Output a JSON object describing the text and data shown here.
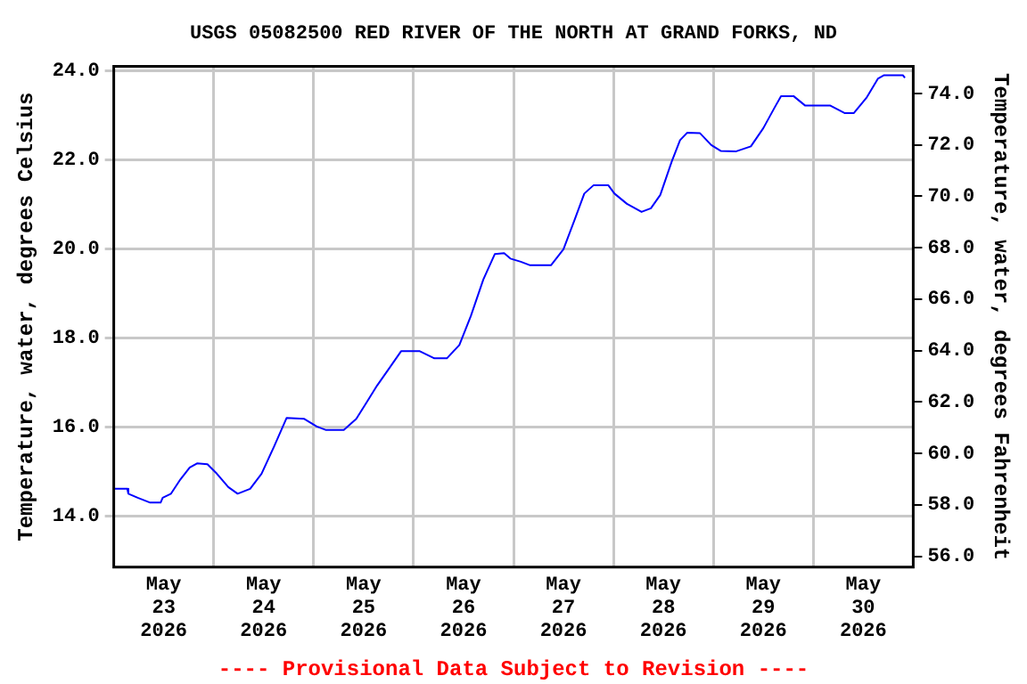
{
  "chart_data": {
    "type": "line",
    "title": "USGS 05082500 RED RIVER OF THE NORTH AT GRAND FORKS, ND",
    "ylabel": "Temperature, water, degrees Celsius",
    "y2label": "Temperature, water, degrees Fahrenheit",
    "annotations": [
      "---- Provisional Data Subject to Revision ----"
    ],
    "x": [
      "2026-05-23T00:00",
      "2026-05-23T03:15",
      "2026-05-23T03:30",
      "2026-05-23T05:45",
      "2026-05-23T08:45",
      "2026-05-23T11:15",
      "2026-05-23T11:45",
      "2026-05-23T13:45",
      "2026-05-23T16:00",
      "2026-05-23T18:15",
      "2026-05-23T20:00",
      "2026-05-23T22:30",
      "2026-05-24T00:45",
      "2026-05-24T03:30",
      "2026-05-24T05:45",
      "2026-05-24T08:45",
      "2026-05-24T11:30",
      "2026-05-24T14:30",
      "2026-05-24T17:30",
      "2026-05-24T21:45",
      "2026-05-25T00:45",
      "2026-05-25T03:00",
      "2026-05-25T07:15",
      "2026-05-25T10:15",
      "2026-05-25T13:00",
      "2026-05-25T15:15",
      "2026-05-25T18:15",
      "2026-05-25T21:00",
      "2026-05-26T01:30",
      "2026-05-26T05:00",
      "2026-05-26T08:00",
      "2026-05-26T11:00",
      "2026-05-26T13:45",
      "2026-05-26T16:45",
      "2026-05-26T19:30",
      "2026-05-26T21:45",
      "2026-05-26T23:15",
      "2026-05-27T01:45",
      "2026-05-27T04:00",
      "2026-05-27T09:00",
      "2026-05-27T12:00",
      "2026-05-27T14:45",
      "2026-05-27T17:00",
      "2026-05-27T19:15",
      "2026-05-27T22:45",
      "2026-05-28T00:15",
      "2026-05-28T03:15",
      "2026-05-28T06:45",
      "2026-05-28T09:00",
      "2026-05-28T11:15",
      "2026-05-28T14:00",
      "2026-05-28T16:00",
      "2026-05-28T17:45",
      "2026-05-28T20:45",
      "2026-05-28T23:30",
      "2026-05-29T01:45",
      "2026-05-29T05:30",
      "2026-05-29T09:00",
      "2026-05-29T12:00",
      "2026-05-29T14:45",
      "2026-05-29T16:15",
      "2026-05-29T19:15",
      "2026-05-29T22:00",
      "2026-05-30T04:00",
      "2026-05-30T07:30",
      "2026-05-30T09:45",
      "2026-05-30T12:45",
      "2026-05-30T15:30",
      "2026-05-30T17:00",
      "2026-05-30T21:30",
      "2026-05-30T22:00"
    ],
    "series": [
      {
        "color": "#0000ff",
        "values": [
          14.61,
          14.61,
          14.5,
          14.41,
          14.3,
          14.3,
          14.41,
          14.5,
          14.82,
          15.09,
          15.18,
          15.16,
          14.95,
          14.65,
          14.5,
          14.61,
          14.95,
          15.56,
          16.2,
          16.18,
          16.01,
          15.93,
          15.93,
          16.18,
          16.59,
          16.93,
          17.33,
          17.7,
          17.7,
          17.54,
          17.54,
          17.84,
          18.49,
          19.31,
          19.88,
          19.9,
          19.78,
          19.71,
          19.63,
          19.63,
          19.99,
          20.67,
          21.24,
          21.43,
          21.43,
          21.24,
          21.01,
          20.83,
          20.91,
          21.21,
          21.96,
          22.44,
          22.61,
          22.6,
          22.33,
          22.2,
          22.19,
          22.3,
          22.71,
          23.18,
          23.43,
          23.43,
          23.22,
          23.22,
          23.05,
          23.05,
          23.39,
          23.82,
          23.9,
          23.9,
          23.84
        ]
      }
    ],
    "xlim": [
      "2026-05-23T00:00",
      "2026-05-31T00:00"
    ],
    "xticks": [
      {
        "value": "2026-05-23T12:00",
        "label": "May 23 2026"
      },
      {
        "value": "2026-05-24T00:00",
        "label": null
      },
      {
        "value": "2026-05-24T12:00",
        "label": "May 24 2026"
      },
      {
        "value": "2026-05-25T00:00",
        "label": null
      },
      {
        "value": "2026-05-25T12:00",
        "label": "May 25 2026"
      },
      {
        "value": "2026-05-26T00:00",
        "label": null
      },
      {
        "value": "2026-05-26T12:00",
        "label": "May 26 2026"
      },
      {
        "value": "2026-05-27T00:00",
        "label": null
      },
      {
        "value": "2026-05-27T12:00",
        "label": "May 27 2026"
      },
      {
        "value": "2026-05-28T00:00",
        "label": null
      },
      {
        "value": "2026-05-28T12:00",
        "label": "May 28 2026"
      },
      {
        "value": "2026-05-29T00:00",
        "label": null
      },
      {
        "value": "2026-05-29T12:00",
        "label": "May 29 2026"
      },
      {
        "value": "2026-05-30T00:00",
        "label": null
      },
      {
        "value": "2026-05-30T12:00",
        "label": "May 30 2026"
      }
    ],
    "ylim": [
      12.85,
      24.1
    ],
    "yticks": [
      {
        "value": 14,
        "label": "14.0"
      },
      {
        "value": 16,
        "label": "16.0"
      },
      {
        "value": 18,
        "label": "18.0"
      },
      {
        "value": 20,
        "label": "20.0"
      },
      {
        "value": 22,
        "label": "22.0"
      },
      {
        "value": 24,
        "label": "24.0"
      }
    ],
    "y2lim": [
      55.58,
      75.06
    ],
    "y2ticks": [
      {
        "value": 56,
        "label": "56.0"
      },
      {
        "value": 58,
        "label": "58.0"
      },
      {
        "value": 60,
        "label": "60.0"
      },
      {
        "value": 62,
        "label": "62.0"
      },
      {
        "value": 64,
        "label": "64.0"
      },
      {
        "value": 66,
        "label": "66.0"
      },
      {
        "value": 68,
        "label": "68.0"
      },
      {
        "value": 70,
        "label": "70.0"
      },
      {
        "value": 72,
        "label": "72.0"
      },
      {
        "value": 74,
        "label": "74.0"
      }
    ],
    "grid": true,
    "legend": false,
    "marker": "none",
    "line_style": "solid"
  }
}
